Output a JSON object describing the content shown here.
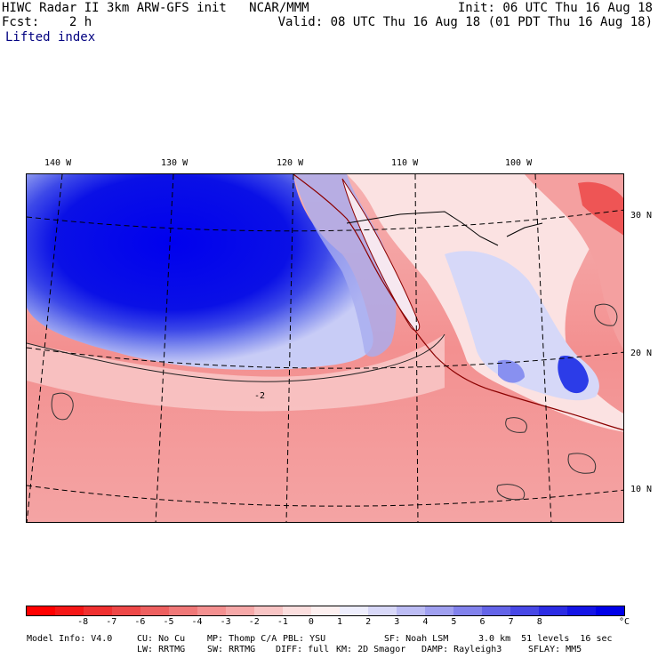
{
  "header": {
    "model_line": "HIWC Radar II 3km ARW-GFS init   NCAR/MMM",
    "init_line": "Init: 06 UTC Thu 16 Aug 18",
    "fcst_line": "Fcst:    2 h",
    "valid_line": "Valid: 08 UTC Thu 16 Aug 18 (01 PDT Thu 16 Aug 18)",
    "field_name": "Lifted index"
  },
  "map": {
    "top_ticks": [
      "140 W",
      "130 W",
      "120 W",
      "110 W",
      "100 W"
    ],
    "right_ticks": [
      "30 N",
      "20 N",
      "10 N"
    ],
    "contour_label": "-2",
    "colors": {
      "strong_negative": "#ee2222",
      "negative": "#f48080",
      "weak_negative": "#f8b0b0",
      "near_zero": "#fce6e6",
      "weak_positive": "#dcdcf8",
      "positive": "#8888f0",
      "strong_positive": "#0000ee",
      "coast": "#8b0000",
      "grid": "#000000"
    }
  },
  "colorbar": {
    "colors": [
      "#ff0000",
      "#f51616",
      "#f03030",
      "#ee4848",
      "#ee6060",
      "#f07878",
      "#f49090",
      "#f6a8a8",
      "#f8c4c4",
      "#fbdede",
      "#fdf0f0",
      "#eeeefd",
      "#d8d8f8",
      "#bcbcf4",
      "#a0a0f0",
      "#8282ec",
      "#6464e8",
      "#4848e6",
      "#2c2ce4",
      "#1414e6",
      "#0000e8"
    ],
    "labels": [
      "-8",
      "-7",
      "-6",
      "-5",
      "-4",
      "-3",
      "-2",
      "-1",
      "0",
      "1",
      "2",
      "3",
      "4",
      "5",
      "6",
      "7",
      "8"
    ],
    "unit": "°C"
  },
  "footer": {
    "line1": [
      "Model Info: V4.0",
      "CU: No Cu",
      "MP: Thomp C/A",
      "PBL: YSU",
      "SF: Noah LSM",
      "3.0 km  51 levels  16 sec"
    ],
    "line2": [
      "LW: RRTMG",
      "SW: RRTMG",
      "DIFF: full",
      "KM: 2D Smagor",
      "DAMP: Rayleigh3",
      "SFLAY: MM5"
    ]
  }
}
